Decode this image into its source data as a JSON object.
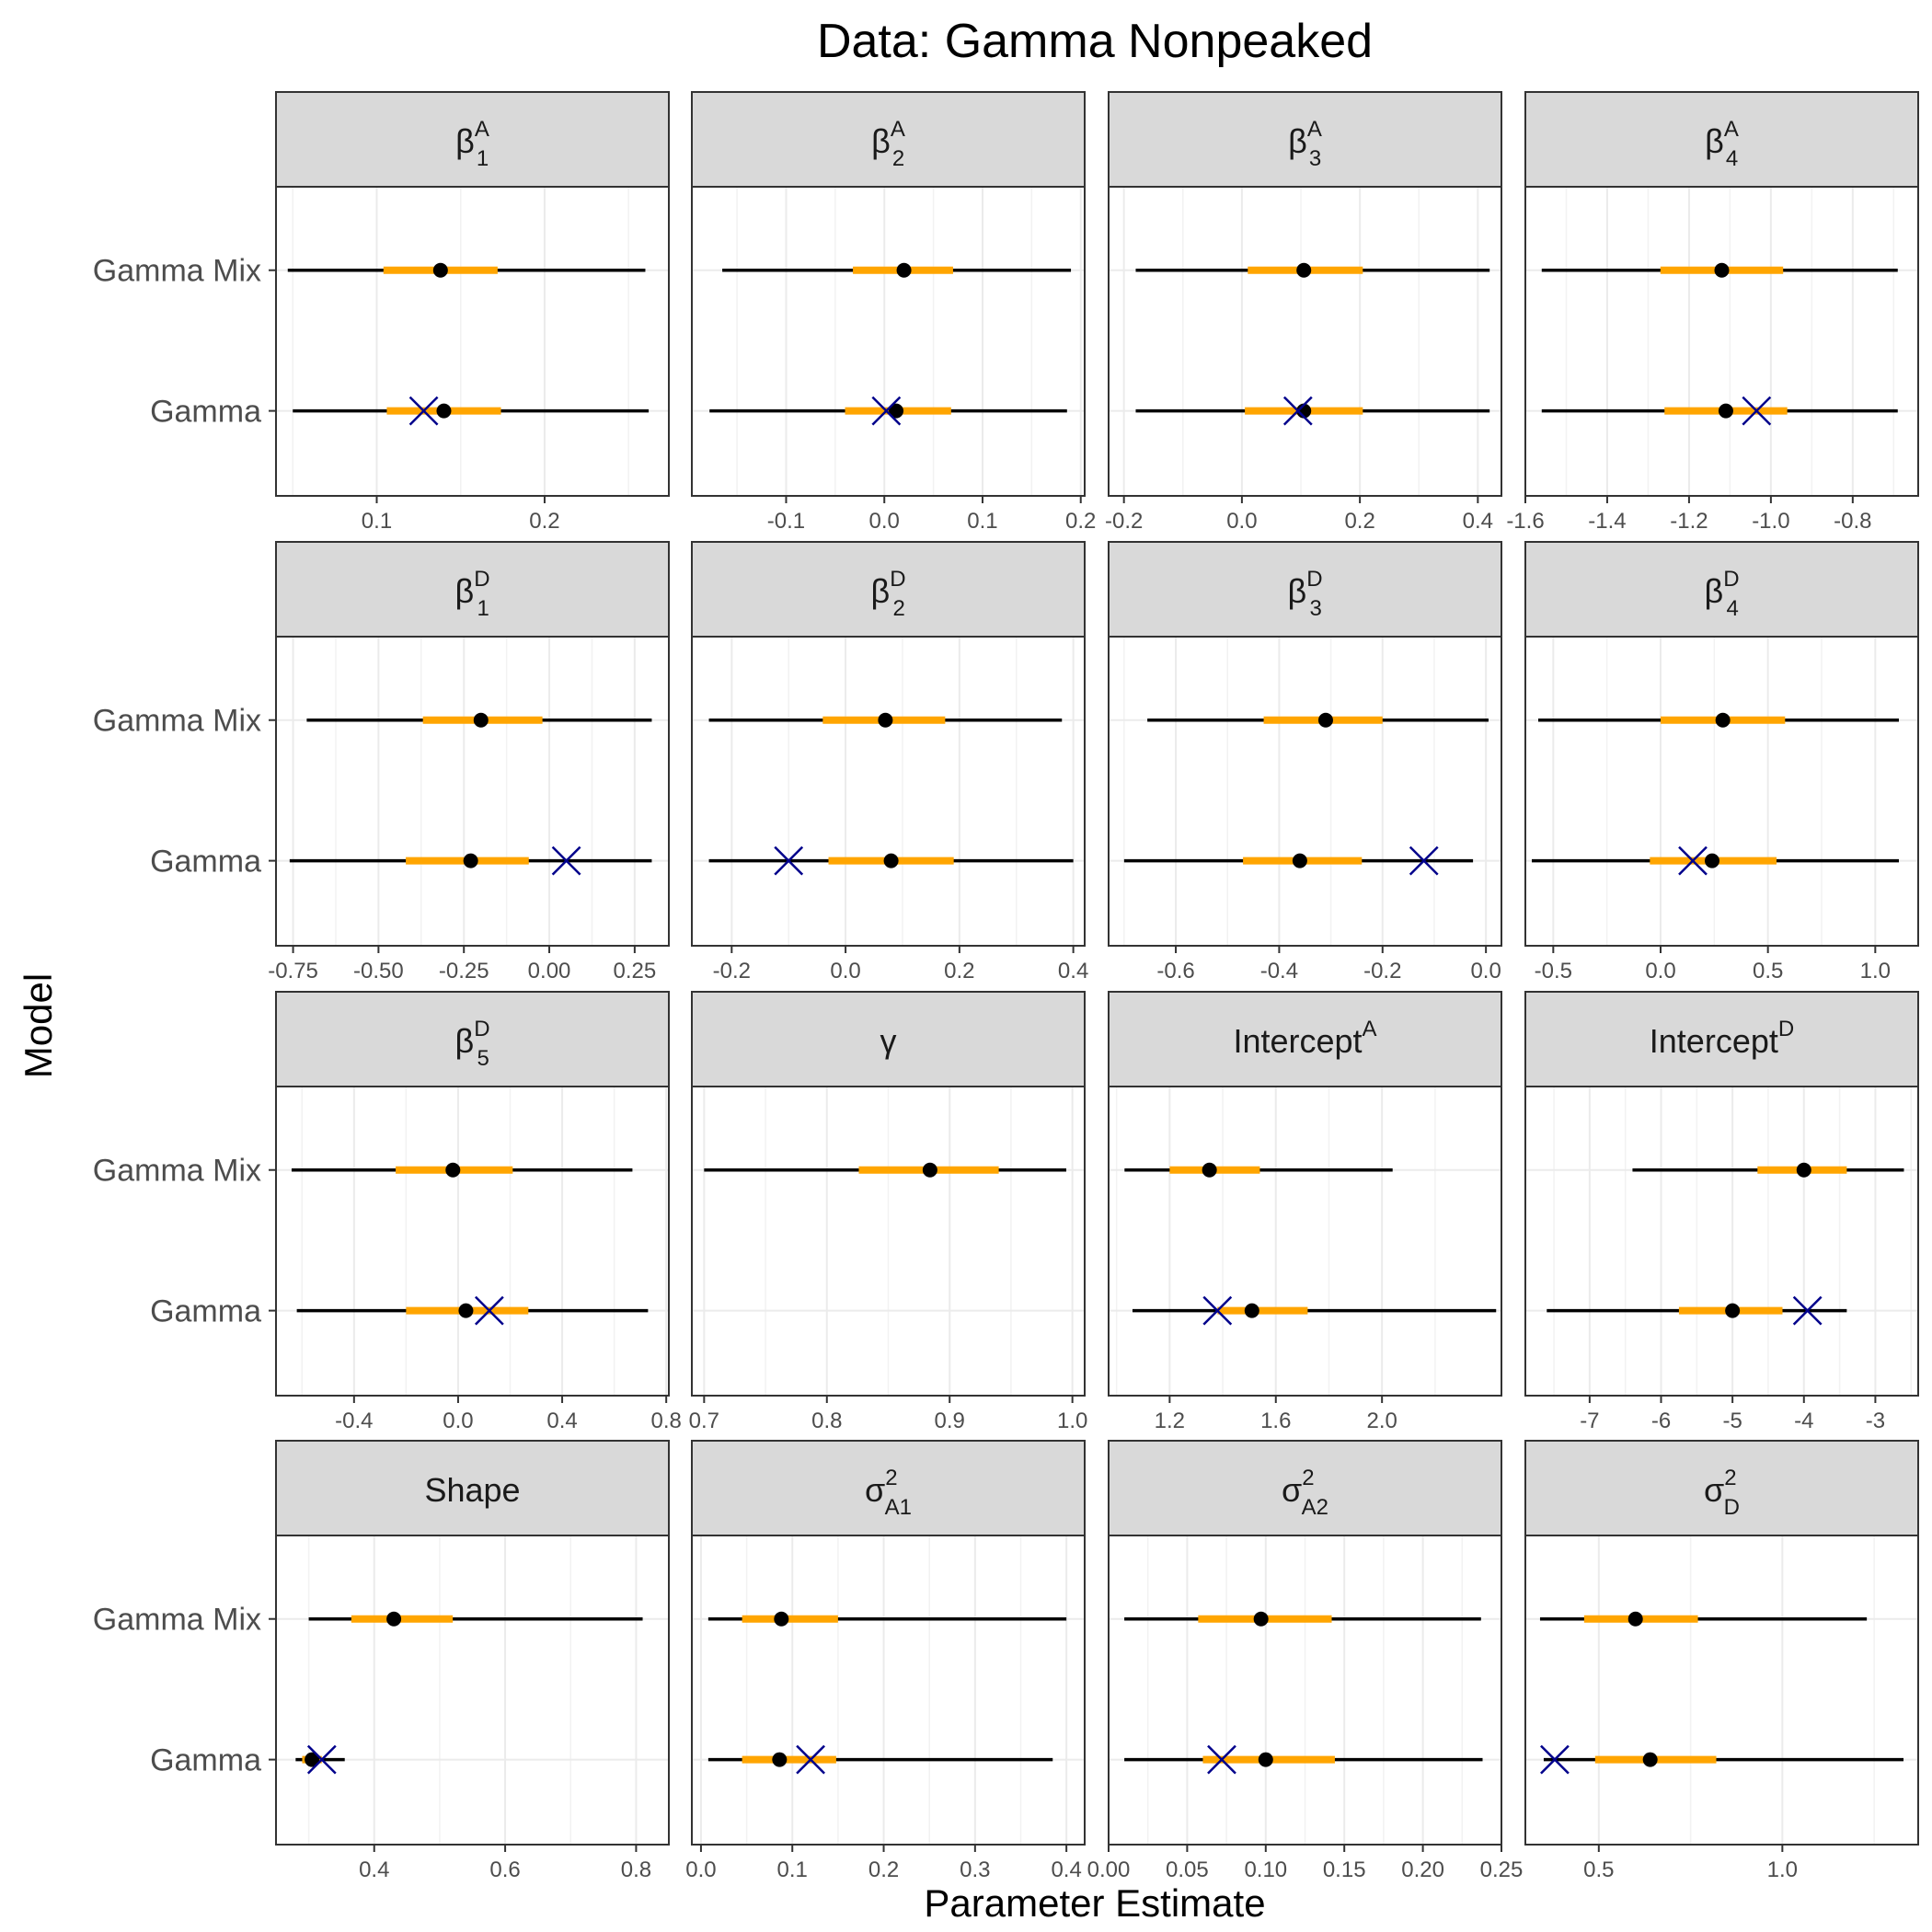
{
  "chart_data": {
    "type": "forest",
    "title": "Data: Gamma Nonpeaked",
    "xlabel": "Parameter Estimate",
    "ylabel": "Model",
    "categories": [
      "Gamma Mix",
      "Gamma"
    ],
    "grid": true,
    "colors": {
      "interval_outer": "#000000",
      "interval_inner": "#FFA500",
      "point": "#000000",
      "true_value": "#00008B",
      "strip_bg": "#D9D9D9",
      "grid": "#EBEBEB"
    },
    "panels": [
      {
        "label": "β₁ᴬ",
        "base": "β",
        "sub": "1",
        "sup": "A",
        "xlim": [
          0.04,
          0.274
        ],
        "ticks": [
          0.1,
          0.2
        ],
        "tick_labels": [
          "0.1",
          "0.2"
        ],
        "rows": [
          {
            "model": "Gamma Mix",
            "lo": 0.047,
            "qlo": 0.104,
            "est": 0.138,
            "qhi": 0.172,
            "hi": 0.26
          },
          {
            "model": "Gamma",
            "lo": 0.05,
            "qlo": 0.106,
            "est": 0.14,
            "qhi": 0.174,
            "hi": 0.262,
            "true": 0.128
          }
        ]
      },
      {
        "label": "β₂ᴬ",
        "base": "β",
        "sub": "2",
        "sup": "A",
        "xlim": [
          -0.196,
          0.204
        ],
        "ticks": [
          -0.1,
          0.0,
          0.1,
          0.2
        ],
        "tick_labels": [
          "-0.1",
          "0.0",
          "0.1",
          "0.2"
        ],
        "rows": [
          {
            "model": "Gamma Mix",
            "lo": -0.165,
            "qlo": -0.032,
            "est": 0.02,
            "qhi": 0.07,
            "hi": 0.19
          },
          {
            "model": "Gamma",
            "lo": -0.178,
            "qlo": -0.04,
            "est": 0.012,
            "qhi": 0.068,
            "hi": 0.186,
            "true": 0.002
          }
        ]
      },
      {
        "label": "β₃ᴬ",
        "base": "β",
        "sub": "3",
        "sup": "A",
        "xlim": [
          -0.226,
          0.44
        ],
        "ticks": [
          -0.2,
          0.0,
          0.2,
          0.4
        ],
        "tick_labels": [
          "-0.2",
          "0.0",
          "0.2",
          "0.4"
        ],
        "rows": [
          {
            "model": "Gamma Mix",
            "lo": -0.18,
            "qlo": 0.01,
            "est": 0.105,
            "qhi": 0.205,
            "hi": 0.42
          },
          {
            "model": "Gamma",
            "lo": -0.18,
            "qlo": 0.005,
            "est": 0.105,
            "qhi": 0.205,
            "hi": 0.42,
            "true": 0.095
          }
        ]
      },
      {
        "label": "β₄ᴬ",
        "base": "β",
        "sub": "4",
        "sup": "A",
        "xlim": [
          -1.6,
          -0.64
        ],
        "ticks": [
          -1.6,
          -1.4,
          -1.2,
          -1.0,
          -0.8
        ],
        "tick_labels": [
          "-1.6",
          "-1.4",
          "-1.2",
          "-1.0",
          "-0.8"
        ],
        "rows": [
          {
            "model": "Gamma Mix",
            "lo": -1.56,
            "qlo": -1.27,
            "est": -1.12,
            "qhi": -0.97,
            "hi": -0.69
          },
          {
            "model": "Gamma",
            "lo": -1.56,
            "qlo": -1.26,
            "est": -1.11,
            "qhi": -0.96,
            "hi": -0.69,
            "true": -1.035
          }
        ]
      },
      {
        "label": "β₁ᴰ",
        "base": "β",
        "sub": "1",
        "sup": "D",
        "xlim": [
          -0.8,
          0.35
        ],
        "ticks": [
          -0.75,
          -0.5,
          -0.25,
          0.0,
          0.25
        ],
        "tick_labels": [
          "-0.75",
          "-0.50",
          "-0.25",
          "0.00",
          "0.25"
        ],
        "rows": [
          {
            "model": "Gamma Mix",
            "lo": -0.71,
            "qlo": -0.37,
            "est": -0.2,
            "qhi": -0.02,
            "hi": 0.3
          },
          {
            "model": "Gamma",
            "lo": -0.76,
            "qlo": -0.42,
            "est": -0.23,
            "qhi": -0.06,
            "hi": 0.3,
            "true": 0.05
          }
        ]
      },
      {
        "label": "β₂ᴰ",
        "base": "β",
        "sub": "2",
        "sup": "D",
        "xlim": [
          -0.27,
          0.42
        ],
        "ticks": [
          -0.2,
          0.0,
          0.2,
          0.4
        ],
        "tick_labels": [
          "-0.2",
          "0.0",
          "0.2",
          "0.4"
        ],
        "rows": [
          {
            "model": "Gamma Mix",
            "lo": -0.24,
            "qlo": -0.04,
            "est": 0.07,
            "qhi": 0.175,
            "hi": 0.38
          },
          {
            "model": "Gamma",
            "lo": -0.24,
            "qlo": -0.03,
            "est": 0.08,
            "qhi": 0.19,
            "hi": 0.4,
            "true": -0.1
          }
        ]
      },
      {
        "label": "β₃ᴰ",
        "base": "β",
        "sub": "3",
        "sup": "D",
        "xlim": [
          -0.73,
          0.03
        ],
        "ticks": [
          -0.6,
          -0.4,
          -0.2,
          0.0
        ],
        "tick_labels": [
          "-0.6",
          "-0.4",
          "-0.2",
          "0.0"
        ],
        "rows": [
          {
            "model": "Gamma Mix",
            "lo": -0.655,
            "qlo": -0.43,
            "est": -0.31,
            "qhi": -0.2,
            "hi": 0.005
          },
          {
            "model": "Gamma",
            "lo": -0.7,
            "qlo": -0.47,
            "est": -0.36,
            "qhi": -0.24,
            "hi": -0.025,
            "true": -0.12
          }
        ]
      },
      {
        "label": "β₄ᴰ",
        "base": "β",
        "sub": "4",
        "sup": "D",
        "xlim": [
          -0.63,
          1.2
        ],
        "ticks": [
          -0.5,
          0.0,
          0.5,
          1.0
        ],
        "tick_labels": [
          "-0.5",
          "0.0",
          "0.5",
          "1.0"
        ],
        "rows": [
          {
            "model": "Gamma Mix",
            "lo": -0.57,
            "qlo": 0.0,
            "est": 0.29,
            "qhi": 0.58,
            "hi": 1.11
          },
          {
            "model": "Gamma",
            "lo": -0.6,
            "qlo": -0.05,
            "est": 0.24,
            "qhi": 0.54,
            "hi": 1.11,
            "true": 0.15
          }
        ]
      },
      {
        "label": "β₅ᴰ",
        "base": "β",
        "sub": "5",
        "sup": "D",
        "xlim": [
          -0.7,
          0.81
        ],
        "ticks": [
          -0.4,
          0.0,
          0.4,
          0.8
        ],
        "tick_labels": [
          "-0.4",
          "0.0",
          "0.4",
          "0.8"
        ],
        "rows": [
          {
            "model": "Gamma Mix",
            "lo": -0.64,
            "qlo": -0.24,
            "est": -0.02,
            "qhi": 0.21,
            "hi": 0.67
          },
          {
            "model": "Gamma",
            "lo": -0.62,
            "qlo": -0.2,
            "est": 0.03,
            "qhi": 0.27,
            "hi": 0.73,
            "true": 0.12
          }
        ]
      },
      {
        "label": "γ",
        "base": "γ",
        "sub": "",
        "sup": "",
        "xlim": [
          0.69,
          1.01
        ],
        "ticks": [
          0.7,
          0.8,
          0.9,
          1.0
        ],
        "tick_labels": [
          "0.7",
          "0.8",
          "0.9",
          "1.0"
        ],
        "rows": [
          {
            "model": "Gamma Mix",
            "lo": 0.7,
            "qlo": 0.826,
            "est": 0.884,
            "qhi": 0.94,
            "hi": 0.995
          }
        ]
      },
      {
        "label": "Interceptᴬ",
        "base": "Intercept",
        "sub": "",
        "sup": "A",
        "xlim": [
          0.97,
          2.45
        ],
        "ticks": [
          1.2,
          1.6,
          2.0
        ],
        "tick_labels": [
          "1.2",
          "1.6",
          "2.0"
        ],
        "rows": [
          {
            "model": "Gamma Mix",
            "lo": 1.03,
            "qlo": 1.2,
            "est": 1.35,
            "qhi": 1.54,
            "hi": 2.04
          },
          {
            "model": "Gamma",
            "lo": 1.06,
            "qlo": 1.38,
            "est": 1.51,
            "qhi": 1.72,
            "hi": 2.43,
            "true": 1.38
          }
        ]
      },
      {
        "label": "Interceptᴰ",
        "base": "Intercept",
        "sub": "",
        "sup": "D",
        "xlim": [
          -7.9,
          -2.4
        ],
        "ticks": [
          -7,
          -6,
          -5,
          -4,
          -3
        ],
        "tick_labels": [
          "-7",
          "-6",
          "-5",
          "-4",
          "-3"
        ],
        "rows": [
          {
            "model": "Gamma Mix",
            "lo": -6.4,
            "qlo": -4.65,
            "est": -4.0,
            "qhi": -3.4,
            "hi": -2.6
          },
          {
            "model": "Gamma",
            "lo": -7.6,
            "qlo": -5.75,
            "est": -5.0,
            "qhi": -4.3,
            "hi": -3.4,
            "true": -3.95
          }
        ]
      },
      {
        "label": "Shape",
        "base": "Shape",
        "sub": "",
        "sup": "",
        "xlim": [
          0.25,
          0.85
        ],
        "ticks": [
          0.4,
          0.6,
          0.8
        ],
        "tick_labels": [
          "0.4",
          "0.6",
          "0.8"
        ],
        "rows": [
          {
            "model": "Gamma Mix",
            "lo": 0.3,
            "qlo": 0.365,
            "est": 0.43,
            "qhi": 0.52,
            "hi": 0.81
          },
          {
            "model": "Gamma",
            "lo": 0.28,
            "qlo": 0.29,
            "est": 0.305,
            "qhi": 0.32,
            "hi": 0.355,
            "true": 0.32
          }
        ]
      },
      {
        "label": "σ²ᴬ¹",
        "base": "σ",
        "sub": "A1",
        "sup": "2",
        "xlim": [
          -0.01,
          0.42
        ],
        "ticks": [
          0.0,
          0.1,
          0.2,
          0.3,
          0.4
        ],
        "tick_labels": [
          "0.0",
          "0.1",
          "0.2",
          "0.3",
          "0.4"
        ],
        "rows": [
          {
            "model": "Gamma Mix",
            "lo": 0.008,
            "qlo": 0.045,
            "est": 0.088,
            "qhi": 0.15,
            "hi": 0.4
          },
          {
            "model": "Gamma",
            "lo": 0.008,
            "qlo": 0.045,
            "est": 0.086,
            "qhi": 0.148,
            "hi": 0.385,
            "true": 0.12
          }
        ]
      },
      {
        "label": "σ²ᴬ²",
        "base": "σ",
        "sub": "A2",
        "sup": "2",
        "xlim": [
          0.0,
          0.25
        ],
        "ticks": [
          0.0,
          0.05,
          0.1,
          0.15,
          0.2,
          0.25
        ],
        "tick_labels": [
          "0.00",
          "0.05",
          "0.10",
          "0.15",
          "0.20",
          "0.25"
        ],
        "rows": [
          {
            "model": "Gamma Mix",
            "lo": 0.01,
            "qlo": 0.057,
            "est": 0.097,
            "qhi": 0.142,
            "hi": 0.237
          },
          {
            "model": "Gamma",
            "lo": 0.01,
            "qlo": 0.06,
            "est": 0.1,
            "qhi": 0.144,
            "hi": 0.238,
            "true": 0.072
          }
        ]
      },
      {
        "label": "σ²ᴰ",
        "base": "σ",
        "sub": "D",
        "sup": "2",
        "xlim": [
          0.3,
          1.37
        ],
        "ticks": [
          0.5,
          1.0
        ],
        "tick_labels": [
          "0.5",
          "1.0"
        ],
        "rows": [
          {
            "model": "Gamma Mix",
            "lo": 0.34,
            "qlo": 0.46,
            "est": 0.6,
            "qhi": 0.77,
            "hi": 1.23
          },
          {
            "model": "Gamma",
            "lo": 0.35,
            "qlo": 0.49,
            "est": 0.64,
            "qhi": 0.82,
            "hi": 1.33,
            "true": 0.38
          }
        ]
      }
    ]
  }
}
